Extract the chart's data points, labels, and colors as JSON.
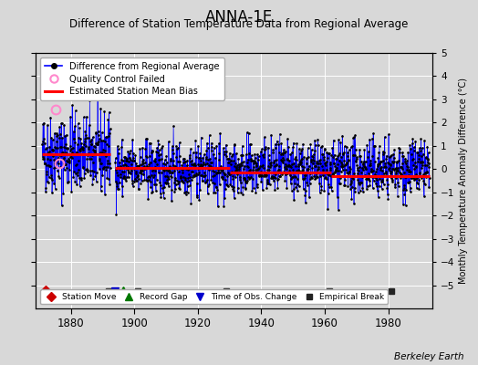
{
  "title": "ANNA-1E",
  "subtitle": "Difference of Station Temperature Data from Regional Average",
  "ylabel_right": "Monthly Temperature Anomaly Difference (°C)",
  "credit": "Berkeley Earth",
  "xlim": [
    1869,
    1994
  ],
  "ylim": [
    -6.0,
    5.0
  ],
  "yticks": [
    -5,
    -4,
    -3,
    -2,
    -1,
    0,
    1,
    2,
    3,
    4,
    5
  ],
  "xticks": [
    1880,
    1900,
    1920,
    1940,
    1960,
    1980
  ],
  "background_color": "#d8d8d8",
  "plot_background": "#d8d8d8",
  "grid_color": "white",
  "line_color": "blue",
  "bias_color": "red",
  "qc_color": "#ff88cc",
  "title_fontsize": 12,
  "subtitle_fontsize": 8.5,
  "seed": 42,
  "segments": [
    {
      "start": 1871.0,
      "end": 1892.5,
      "bias": 0.65,
      "n": 258,
      "std": 0.85
    },
    {
      "start": 1894.0,
      "end": 1993.0,
      "bias": 0.0,
      "n": 1188,
      "std": 0.6
    }
  ],
  "bias_segments": [
    {
      "start": 1871.0,
      "end": 1892.5,
      "value": 0.65
    },
    {
      "start": 1894.0,
      "end": 1930.0,
      "value": 0.05
    },
    {
      "start": 1930.0,
      "end": 1962.0,
      "value": -0.15
    },
    {
      "start": 1962.0,
      "end": 1993.0,
      "value": -0.3
    }
  ],
  "markers_bottom": [
    {
      "type": "station_move",
      "year": 1872.0,
      "color": "#cc0000",
      "marker": "D",
      "size": 6
    },
    {
      "type": "record_gap",
      "year": 1896.5,
      "color": "#007700",
      "marker": "^",
      "size": 7
    },
    {
      "type": "empirical_break",
      "year": 1892.0,
      "color": "#222222",
      "marker": "s",
      "size": 5
    },
    {
      "type": "empirical_break",
      "year": 1901.0,
      "color": "#222222",
      "marker": "s",
      "size": 5
    },
    {
      "type": "empirical_break",
      "year": 1929.0,
      "color": "#222222",
      "marker": "s",
      "size": 5
    },
    {
      "type": "empirical_break",
      "year": 1961.5,
      "color": "#222222",
      "marker": "s",
      "size": 5
    },
    {
      "type": "empirical_break",
      "year": 1981.0,
      "color": "#222222",
      "marker": "s",
      "size": 5
    },
    {
      "type": "time_of_obs",
      "year": 1894.0,
      "color": "#0000cc",
      "marker": "v",
      "size": 6
    }
  ],
  "qc_failed": [
    {
      "year": 1875.3,
      "value": 2.55
    },
    {
      "year": 1876.5,
      "value": 0.25
    }
  ]
}
